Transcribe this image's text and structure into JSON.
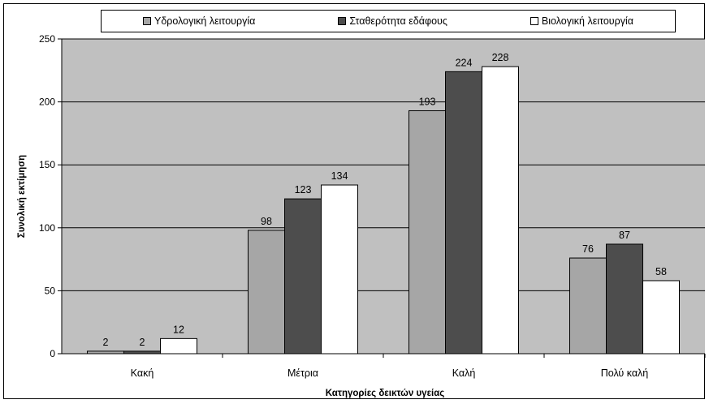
{
  "chart_data": {
    "type": "bar",
    "categories": [
      "Κακή",
      "Μέτρια",
      "Καλή",
      "Πολύ καλή"
    ],
    "series": [
      {
        "name": "Υδρολογική λειτουργία",
        "values": [
          2,
          98,
          193,
          76
        ],
        "color": "#a6a6a6"
      },
      {
        "name": "Σταθερότητα εδάφους",
        "values": [
          2,
          123,
          224,
          87
        ],
        "color": "#4d4d4d"
      },
      {
        "name": "Βιολογική λειτουργία",
        "values": [
          12,
          134,
          228,
          58
        ],
        "color": "#ffffff"
      }
    ],
    "title": "",
    "xlabel": "Κατηγορίες δεικτών υγείας",
    "ylabel": "Συνολική εκτίμηση",
    "ylim": [
      0,
      250
    ],
    "yticks": [
      0,
      50,
      100,
      150,
      200,
      250
    ],
    "grid": true,
    "legend_position": "top",
    "plot_background": "#c0c0c0",
    "data_labels": true
  }
}
